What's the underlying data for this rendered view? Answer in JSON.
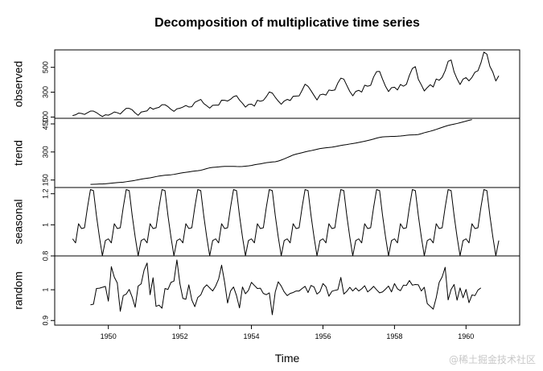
{
  "chart_data": {
    "type": "line",
    "title": "Decomposition of multiplicative time series",
    "xlabel": "Time",
    "x_start": 1949,
    "frequency": 12,
    "xlim": [
      1948.5,
      1961.5
    ],
    "xticks": [
      1950,
      1952,
      1954,
      1956,
      1958,
      1960
    ],
    "panels": [
      {
        "name": "observed",
        "ylabel": "observed",
        "ylim": [
          90,
          640
        ],
        "yticks": [
          100,
          300,
          500
        ],
        "values": [
          112,
          118,
          132,
          129,
          121,
          135,
          148,
          148,
          136,
          119,
          104,
          118,
          115,
          126,
          141,
          135,
          125,
          149,
          170,
          170,
          158,
          133,
          114,
          140,
          145,
          150,
          178,
          163,
          172,
          178,
          199,
          199,
          184,
          162,
          146,
          166,
          171,
          180,
          193,
          181,
          183,
          218,
          230,
          242,
          209,
          191,
          172,
          194,
          196,
          196,
          236,
          235,
          229,
          243,
          264,
          272,
          237,
          211,
          180,
          201,
          204,
          188,
          235,
          227,
          234,
          264,
          302,
          293,
          259,
          229,
          203,
          229,
          242,
          233,
          267,
          269,
          270,
          315,
          364,
          347,
          312,
          274,
          237,
          278,
          284,
          277,
          317,
          313,
          318,
          374,
          413,
          405,
          355,
          306,
          271,
          306,
          315,
          301,
          356,
          348,
          355,
          422,
          465,
          467,
          404,
          347,
          305,
          336,
          340,
          318,
          362,
          348,
          363,
          435,
          491,
          505,
          404,
          359,
          310,
          337,
          360,
          342,
          406,
          396,
          420,
          472,
          548,
          559,
          463,
          407,
          362,
          405,
          417,
          391,
          419,
          461,
          472,
          535,
          622,
          606,
          508,
          461,
          390,
          432
        ]
      },
      {
        "name": "trend",
        "ylabel": "trend",
        "ylim": [
          110,
          480
        ],
        "yticks": [
          150,
          300,
          450
        ],
        "start_offset": 6,
        "values": [
          126.8,
          127.3,
          127.96,
          128.58,
          129.0,
          129.75,
          131.25,
          133.08,
          134.92,
          136.42,
          137.42,
          138.75,
          140.92,
          143.17,
          145.71,
          148.42,
          151.54,
          154.71,
          157.12,
          159.54,
          161.83,
          164.75,
          168.38,
          171.25,
          173.58,
          175.46,
          176.83,
          178.04,
          180.17,
          183.12,
          186.21,
          189.04,
          191.29,
          193.58,
          195.83,
          198.04,
          199.75,
          202.21,
          206.42,
          211.17,
          215.21,
          217.42,
          218.79,
          220.0,
          222.0,
          222.92,
          222.96,
          223.0,
          222.75,
          222.17,
          222.04,
          222.42,
          223.79,
          225.46,
          227.79,
          231.33,
          234.12,
          236.58,
          239.58,
          242.58,
          244.5,
          246.42,
          247.71,
          251.33,
          256.75,
          263.04,
          269.83,
          276.75,
          283.83,
          288.42,
          292.25,
          296.17,
          300.42,
          303.96,
          307.08,
          310.5,
          314.5,
          318.08,
          320.5,
          322.25,
          324.0,
          325.88,
          328.46,
          331.58,
          335.0,
          337.38,
          339.58,
          342.58,
          345.04,
          347.58,
          350.96,
          354.0,
          357.21,
          361.08,
          365.08,
          369.29,
          374.04,
          377.83,
          380.46,
          381.38,
          382.33,
          383.04,
          383.46,
          384.0,
          385.17,
          386.92,
          389.21,
          390.54,
          391.46,
          391.92,
          393.54,
          397.71,
          402.79,
          407.0,
          410.92,
          415.5,
          420.62,
          426.08,
          431.5,
          436.88,
          441.71,
          445.71,
          448.96,
          452.29,
          456.33,
          460.58,
          465.12,
          469.42,
          472.75
        ]
      },
      {
        "name": "seasonal",
        "ylabel": "seasonal",
        "ylim": [
          0.8,
          1.24
        ],
        "yticks": [
          0.8,
          1.0,
          1.2
        ],
        "start_offset": 0,
        "cycle": [
          0.91,
          0.884,
          1.007,
          0.976,
          0.981,
          1.113,
          1.227,
          1.22,
          1.06,
          0.922,
          0.801,
          0.899
        ],
        "values": []
      },
      {
        "name": "random",
        "ylabel": "random",
        "ylim": [
          0.885,
          1.11
        ],
        "yticks": [
          0.9,
          1.0
        ],
        "start_offset": 6,
        "values": [
          0.951,
          0.953,
          1.004,
          1.005,
          1.008,
          1.011,
          0.963,
          1.075,
          1.041,
          1.022,
          0.93,
          0.981,
          0.986,
          1.001,
          0.976,
          0.943,
          1.012,
          1.019,
          1.064,
          1.087,
          0.984,
          1.039,
          0.946,
          0.95,
          0.94,
          1.004,
          1.001,
          1.024,
          1.028,
          1.097,
          1.02,
          0.972,
          0.969,
          1.016,
          0.967,
          0.945,
          0.975,
          0.983,
          1.006,
          1.016,
          1.006,
          0.996,
          1.012,
          1.035,
          1.08,
          1.025,
          0.957,
          0.996,
          1.009,
          0.981,
          0.941,
          1.009,
          0.987,
          0.998,
          1.024,
          1.014,
          1.004,
          1.005,
          0.988,
          0.984,
          0.99,
          0.919,
          0.993,
          1.026,
          1.012,
          0.993,
          0.981,
          0.988,
          0.991,
          0.996,
          0.996,
          1.004,
          1.011,
          0.991,
          1.014,
          1.009,
          0.986,
          0.994,
          1.02,
          1.01,
          0.979,
          0.995,
          0.998,
          1.0,
          1.04,
          0.986,
          0.995,
          1.008,
          0.996,
          1.006,
          0.996,
          1.003,
          1.013,
          0.993,
          1.001,
          1.011,
          1.0,
          0.99,
          0.993,
          1.002,
          1.012,
          0.993,
          1.02,
          1.003,
          0.997,
          1.015,
          1.014,
          1.03,
          1.015,
          1.017,
          1.016,
          0.996,
          1.008,
          0.955,
          0.946,
          0.937,
          0.974,
          1.024,
          1.042,
          1.073,
          0.967,
          1.001,
          1.017,
          0.966,
          1.006,
          0.974,
          1.001,
          0.958,
          0.983,
          0.981,
          0.999,
          1.006
        ]
      }
    ]
  },
  "watermark": "@稀土掘金技术社区"
}
